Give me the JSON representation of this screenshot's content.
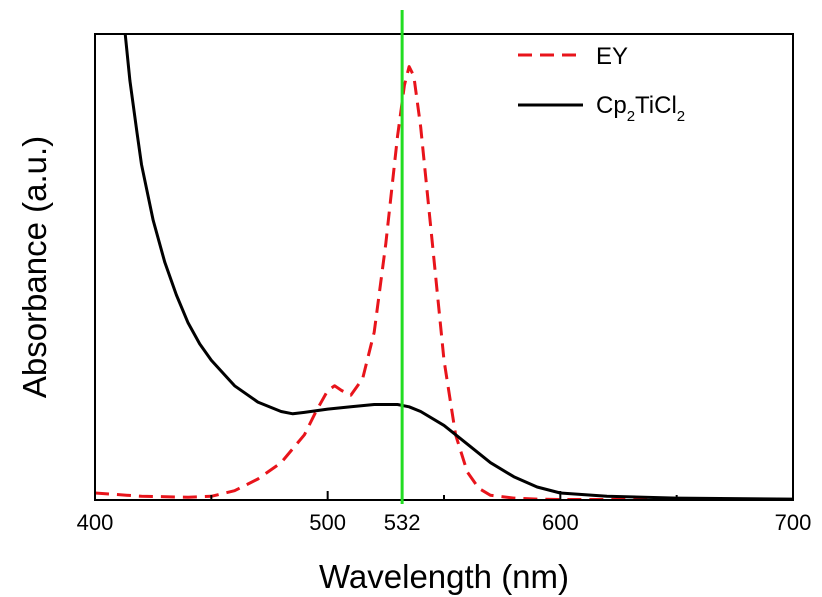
{
  "chart_data": {
    "type": "line",
    "title": "",
    "xlabel": "Wavelength (nm)",
    "ylabel": "Absorbance (a.u.)",
    "xlim": [
      400,
      700
    ],
    "ylim": [
      0,
      1
    ],
    "x_ticks": [
      400,
      500,
      532,
      600,
      700
    ],
    "x_tick_labels": [
      "400",
      "500",
      "532",
      "600",
      "700"
    ],
    "y_ticks_shown": false,
    "grid": false,
    "legend_position": "top-right",
    "marker_line": {
      "x": 532,
      "color": "#22dd22"
    },
    "series": [
      {
        "name": "EY",
        "color": "#e8141b",
        "style": "dashed",
        "x": [
          400,
          420,
          440,
          450,
          460,
          470,
          480,
          490,
          495,
          500,
          503,
          506,
          510,
          515,
          520,
          525,
          530,
          533,
          535,
          537,
          540,
          545,
          550,
          555,
          560,
          565,
          570,
          580,
          590,
          600,
          620,
          650,
          700
        ],
        "y": [
          0.015,
          0.008,
          0.006,
          0.008,
          0.02,
          0.045,
          0.08,
          0.14,
          0.19,
          0.235,
          0.245,
          0.235,
          0.225,
          0.26,
          0.36,
          0.55,
          0.78,
          0.89,
          0.93,
          0.91,
          0.8,
          0.55,
          0.3,
          0.14,
          0.06,
          0.025,
          0.01,
          0.004,
          0.002,
          0.001,
          0.001,
          0.001,
          0.001
        ]
      },
      {
        "name": "Cp2TiCl2",
        "label_main": "Cp",
        "label_sub1": "2",
        "label_mid": "TiCl",
        "label_sub2": "2",
        "color": "#000000",
        "style": "solid",
        "x": [
          413,
          415,
          418,
          420,
          425,
          430,
          435,
          440,
          445,
          450,
          460,
          470,
          480,
          485,
          490,
          500,
          510,
          520,
          530,
          535,
          540,
          550,
          560,
          570,
          580,
          590,
          600,
          620,
          650,
          700
        ],
        "y": [
          1.0,
          0.9,
          0.79,
          0.72,
          0.6,
          0.51,
          0.44,
          0.38,
          0.335,
          0.3,
          0.245,
          0.21,
          0.19,
          0.185,
          0.188,
          0.195,
          0.2,
          0.205,
          0.205,
          0.2,
          0.19,
          0.16,
          0.12,
          0.08,
          0.05,
          0.028,
          0.015,
          0.008,
          0.004,
          0.002
        ]
      }
    ]
  }
}
